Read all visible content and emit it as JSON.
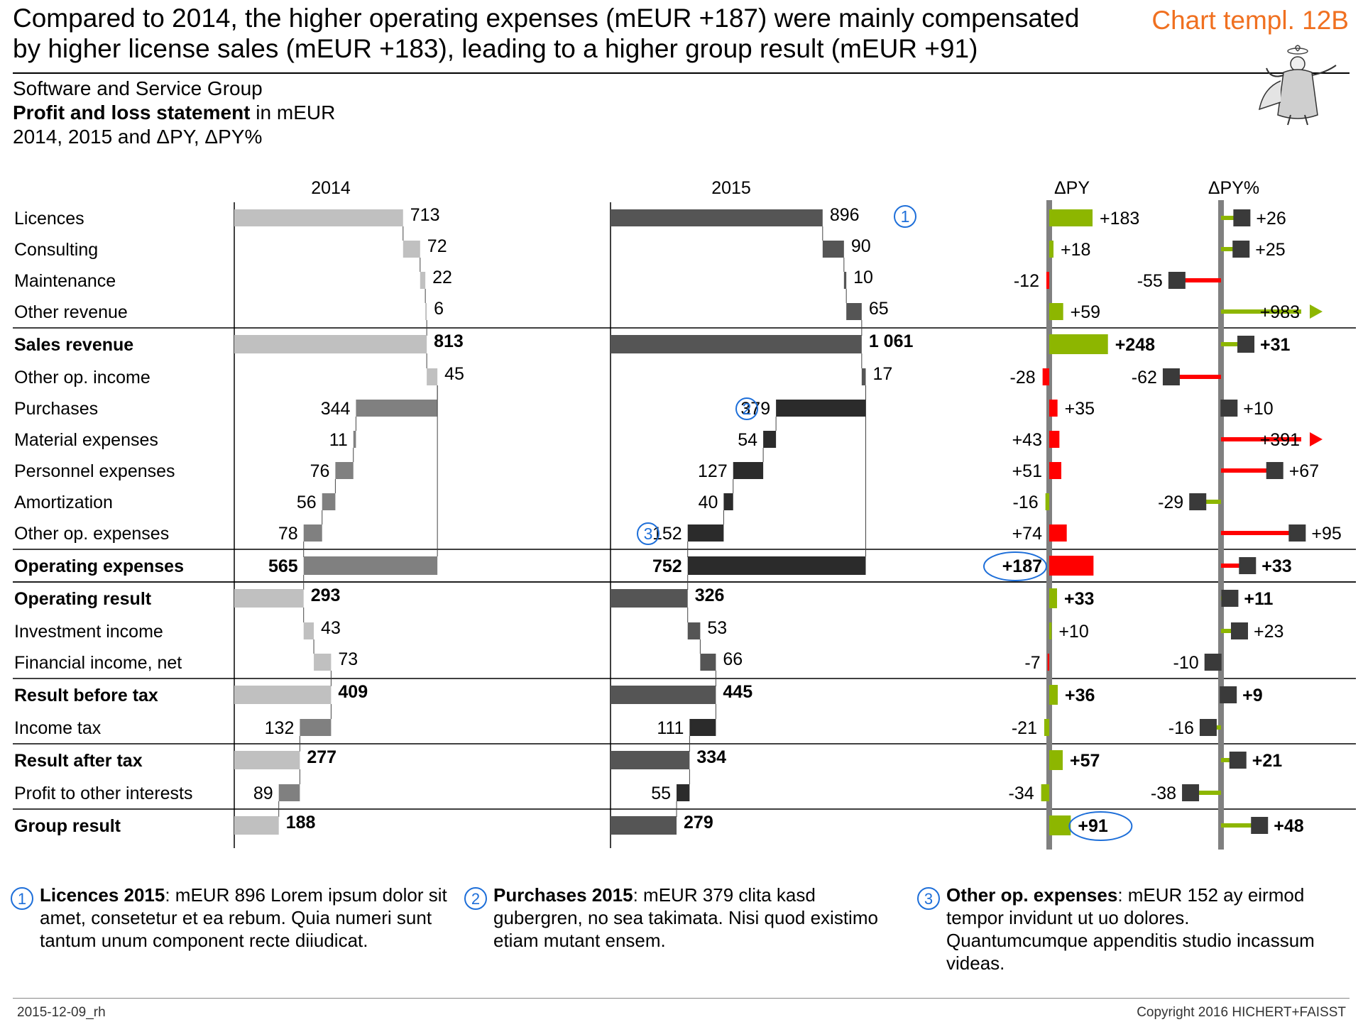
{
  "title": {
    "line1": "Compared to 2014, the higher operating expenses (mEUR +187) were mainly compensated",
    "line2": "by higher license sales (mEUR +183), leading to a higher group result (mEUR +91)"
  },
  "template_label": "Chart templ. 12B",
  "subtitle": {
    "company": "Software and Service Group",
    "statement_bold": "Profit and loss statement",
    "statement_unit": " in mEUR",
    "periods": "2014, 2015 and ΔPY, ΔPY%"
  },
  "chart_data": {
    "type": "bar",
    "subtype": "waterfall profit-and-loss statement with variance columns",
    "column_headers": [
      "2014",
      "2015",
      "ΔPY",
      "ΔPY%"
    ],
    "unit": "mEUR",
    "colors": {
      "gain": "#8db600",
      "loss": "#ff0000",
      "bar_2014": "#c0c0c0",
      "bar_2014_dark": "#808080",
      "bar_2015": "#555555",
      "bar_2015_dark": "#2b2b2b",
      "axis": "#808080",
      "pct_marker": "#3a3a3a",
      "callout": "#1e6fd9"
    },
    "rows": [
      {
        "label": "Licences",
        "kind": "item",
        "v2014": 713,
        "v2015": 896,
        "l2014": "713",
        "l2015": "896",
        "delta": 183,
        "dlabel": "+183",
        "pct": 26,
        "plabel": "+26",
        "good": true,
        "callout": "1"
      },
      {
        "label": "Consulting",
        "kind": "item",
        "v2014": 72,
        "v2015": 90,
        "l2014": "72",
        "l2015": "90",
        "delta": 18,
        "dlabel": "+18",
        "pct": 25,
        "plabel": "+25",
        "good": true
      },
      {
        "label": "Maintenance",
        "kind": "item",
        "v2014": 22,
        "v2015": 10,
        "l2014": "22",
        "l2015": "10",
        "delta": -12,
        "dlabel": "-12",
        "pct": -55,
        "plabel": "-55",
        "good": false
      },
      {
        "label": "Other revenue",
        "kind": "item",
        "v2014": 6,
        "v2015": 65,
        "l2014": "6",
        "l2015": "65",
        "delta": 59,
        "dlabel": "+59",
        "pct": 983,
        "plabel": "+983",
        "good": true,
        "pct_clipped": true
      },
      {
        "label": "Sales revenue",
        "kind": "total",
        "v2014": 813,
        "v2015": 1061,
        "l2014": "813",
        "l2015": "1 061",
        "delta": 248,
        "dlabel": "+248",
        "pct": 31,
        "plabel": "+31",
        "good": true
      },
      {
        "label": "Other op. income",
        "kind": "item",
        "v2014": 45,
        "v2015": 17,
        "l2014": "45",
        "l2015": "17",
        "delta": -28,
        "dlabel": "-28",
        "pct": -62,
        "plabel": "-62",
        "good": false
      },
      {
        "label": "Purchases",
        "kind": "expense",
        "v2014": 344,
        "v2015": 379,
        "l2014": "344",
        "l2015": "379",
        "delta": 35,
        "dlabel": "+35",
        "pct": 10,
        "plabel": "+10",
        "good": false,
        "callout": "2"
      },
      {
        "label": "Material expenses",
        "kind": "expense",
        "v2014": 11,
        "v2015": 54,
        "l2014": "11",
        "l2015": "54",
        "delta": 43,
        "dlabel": "+43",
        "pct": 391,
        "plabel": "+391",
        "good": false,
        "pct_clipped": true
      },
      {
        "label": "Personnel expenses",
        "kind": "expense",
        "v2014": 76,
        "v2015": 127,
        "l2014": "76",
        "l2015": "127",
        "delta": 51,
        "dlabel": "+51",
        "pct": 67,
        "plabel": "+67",
        "good": false
      },
      {
        "label": "Amortization",
        "kind": "expense",
        "v2014": 56,
        "v2015": 40,
        "l2014": "56",
        "l2015": "40",
        "delta": -16,
        "dlabel": "-16",
        "pct": -29,
        "plabel": "-29",
        "good": true
      },
      {
        "label": "Other op. expenses",
        "kind": "expense",
        "v2014": 78,
        "v2015": 152,
        "l2014": "78",
        "l2015": "152",
        "delta": 74,
        "dlabel": "+74",
        "pct": 95,
        "plabel": "+95",
        "good": false,
        "callout": "3"
      },
      {
        "label": "Operating expenses",
        "kind": "expense_total",
        "v2014": 565,
        "v2015": 752,
        "l2014": "565",
        "l2015": "752",
        "delta": 187,
        "dlabel": "+187",
        "pct": 33,
        "plabel": "+33",
        "good": false,
        "circled_delta": true
      },
      {
        "label": "Operating result",
        "kind": "total",
        "v2014": 293,
        "v2015": 326,
        "l2014": "293",
        "l2015": "326",
        "delta": 33,
        "dlabel": "+33",
        "pct": 11,
        "plabel": "+11",
        "good": true
      },
      {
        "label": "Investment  income",
        "kind": "item",
        "v2014": 43,
        "v2015": 53,
        "l2014": "43",
        "l2015": "53",
        "delta": 10,
        "dlabel": "+10",
        "pct": 23,
        "plabel": "+23",
        "good": true
      },
      {
        "label": "Financial income, net",
        "kind": "item",
        "v2014": 73,
        "v2015": 66,
        "l2014": "73",
        "l2015": "66",
        "delta": -7,
        "dlabel": "-7",
        "pct": -10,
        "plabel": "-10",
        "good": false
      },
      {
        "label": "Result before tax",
        "kind": "total",
        "v2014": 409,
        "v2015": 445,
        "l2014": "409",
        "l2015": "445",
        "delta": 36,
        "dlabel": "+36",
        "pct": 9,
        "plabel": "+9",
        "good": true
      },
      {
        "label": "Income tax",
        "kind": "expense",
        "v2014": 132,
        "v2015": 111,
        "l2014": "132",
        "l2015": "111",
        "delta": -21,
        "dlabel": "-21",
        "pct": -16,
        "plabel": "-16",
        "good": true
      },
      {
        "label": "Result after tax",
        "kind": "total",
        "v2014": 277,
        "v2015": 334,
        "l2014": "277",
        "l2015": "334",
        "delta": 57,
        "dlabel": "+57",
        "pct": 21,
        "plabel": "+21",
        "good": true
      },
      {
        "label": "Profit to other interests",
        "kind": "expense",
        "v2014": 89,
        "v2015": 55,
        "l2014": "89",
        "l2015": "55",
        "delta": -34,
        "dlabel": "-34",
        "pct": -38,
        "plabel": "-38",
        "good": true
      },
      {
        "label": "Group result",
        "kind": "total",
        "v2014": 188,
        "v2015": 279,
        "l2014": "188",
        "l2015": "279",
        "delta": 91,
        "dlabel": "+91",
        "pct": 48,
        "plabel": "+48",
        "good": true,
        "circled_delta": true
      }
    ]
  },
  "footnotes": [
    {
      "number": "1",
      "bold": "Licences 2015",
      "text": ": mEUR 896 Lorem ipsum dolor sit amet, consetetur et ea rebum. Quia numeri sunt tantum unum component recte diiudicat."
    },
    {
      "number": "2",
      "bold": "Purchases 2015",
      "text": ": mEUR 379 clita kasd gubergren, no sea takimata. Nisi quod existimo etiam mutant ensem."
    },
    {
      "number": "3",
      "bold": "Other op. expenses",
      "text": ": mEUR 152 ay eirmod tempor invidunt ut uo dolores. Quantumcumque appenditis studio incassum videas."
    }
  ],
  "footer": {
    "date": "2015-12-09_rh",
    "copyright": "Copyright 2016 HICHERT+FAISST"
  }
}
